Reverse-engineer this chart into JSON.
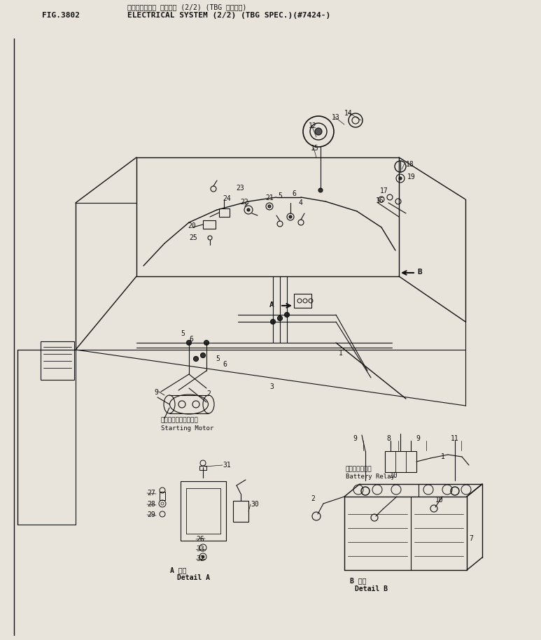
{
  "title_line1": "エレクトリカル システム (2/2) (TBG スペック)",
  "title_line2": "ELECTRICAL SYSTEM (2/2) (TBG SPEC.)(#7424-)",
  "fig_number": "FIG.3802",
  "bg": "#e8e4dc",
  "lc": "#111111",
  "tc": "#111111",
  "detail_a_jp": "A 詳細",
  "detail_a_en": "Detail A",
  "detail_b_jp": "B 詳細",
  "detail_b_en": "Detail B",
  "sm_jp": "スターティングモータ",
  "sm_en": "Starting Motor",
  "br_jp": "バッテリリレー",
  "br_en": "Battery Relay"
}
